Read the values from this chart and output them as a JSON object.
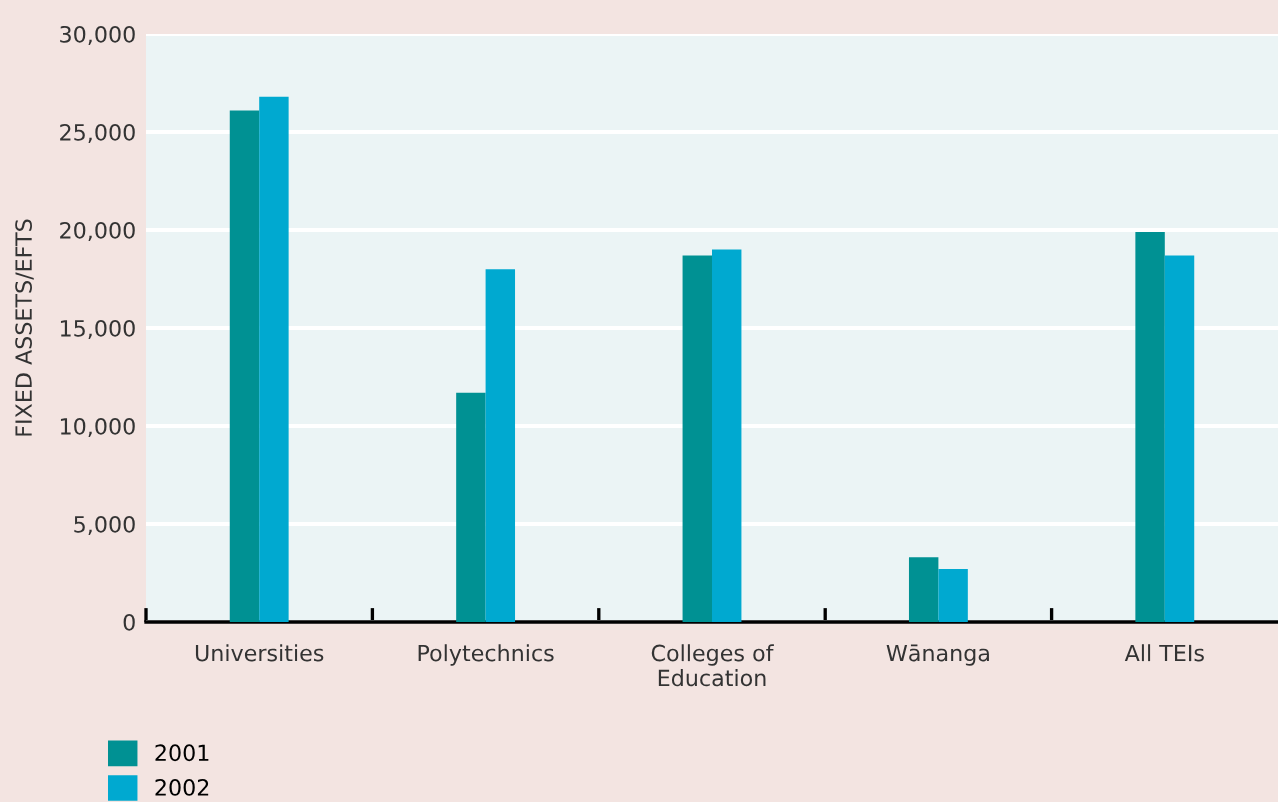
{
  "chart_data": {
    "type": "bar",
    "ylabel": "FIXED ASSETS/EFTS",
    "categories": [
      "Universities",
      "Polytechnics",
      "Colleges of\nEducation",
      "Wānanga",
      "All TEIs"
    ],
    "series": [
      {
        "name": "2001",
        "color": "#009193",
        "values": [
          26100,
          11700,
          18700,
          3300,
          19900
        ]
      },
      {
        "name": "2002",
        "color": "#00a9d0",
        "values": [
          26800,
          18000,
          19000,
          2700,
          18700
        ]
      }
    ],
    "ylim": [
      0,
      30000
    ],
    "yticks": [
      {
        "value": 0,
        "label": "0"
      },
      {
        "value": 5000,
        "label": "5,000"
      },
      {
        "value": 10000,
        "label": "10,000"
      },
      {
        "value": 15000,
        "label": "15,000"
      },
      {
        "value": 20000,
        "label": "20,000"
      },
      {
        "value": 25000,
        "label": "25,000"
      },
      {
        "value": 30000,
        "label": "30,000"
      }
    ],
    "grid": "y",
    "legend": "bottom left"
  }
}
